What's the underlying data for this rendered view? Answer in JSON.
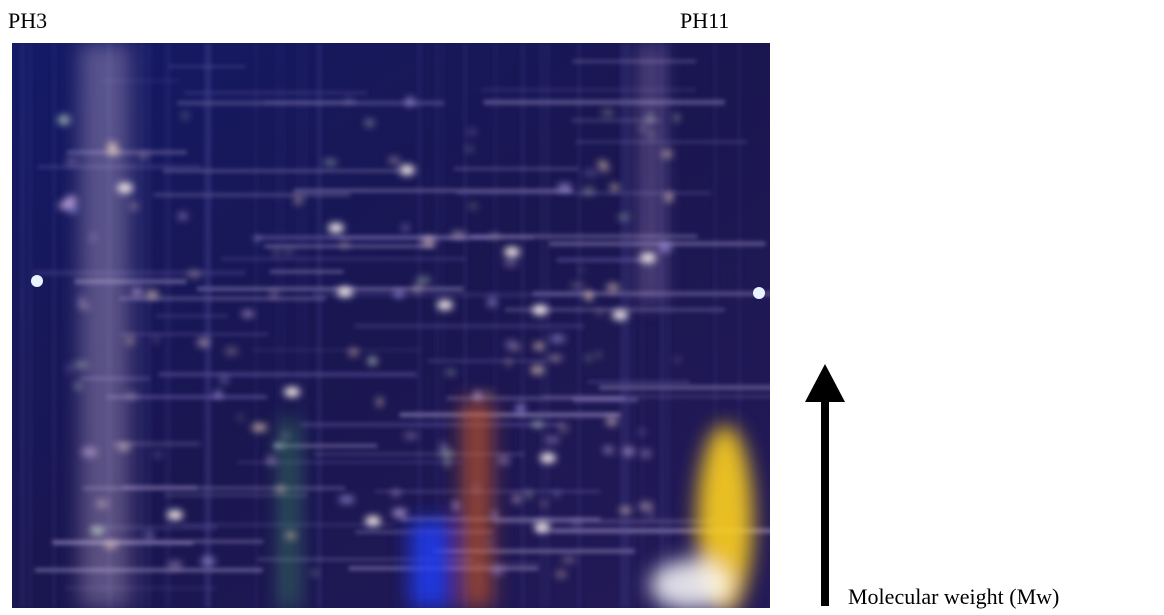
{
  "labels": {
    "left_ph": "PH3",
    "right_ph": "PH11",
    "axis": "Molecular weight (Mw)"
  }
}
